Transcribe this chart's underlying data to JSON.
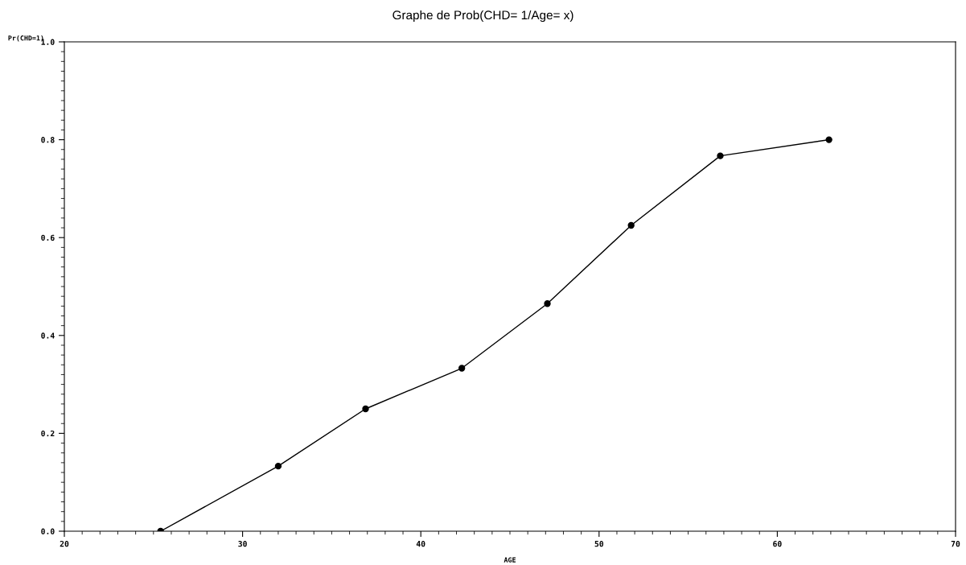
{
  "chart_data": {
    "type": "line",
    "title": "Graphe de Prob(CHD= 1/Age= x)",
    "xlabel": "AGE",
    "ylabel": "Pr(CHD=1)",
    "x": [
      25.4,
      32,
      36.9,
      42.3,
      47.1,
      51.8,
      56.8,
      62.9
    ],
    "series": [
      {
        "color": "#000000",
        "values": [
          0.0,
          0.133,
          0.25,
          0.333,
          0.465,
          0.625,
          0.767,
          0.8
        ]
      }
    ],
    "marker": "circle",
    "line_style": "solid",
    "xlim": [
      20,
      70
    ],
    "xticks": [
      20,
      30,
      40,
      50,
      60,
      70
    ],
    "ylim": [
      0.0,
      1.0
    ],
    "yticks": [
      {
        "value": 0.0,
        "label": "0.0"
      },
      {
        "value": 0.2,
        "label": "0.2"
      },
      {
        "value": 0.4,
        "label": "0.4"
      },
      {
        "value": 0.6,
        "label": "0.6"
      },
      {
        "value": 0.8,
        "label": "0.8"
      },
      {
        "value": 1.0,
        "label": "1.0"
      }
    ],
    "grid": false
  }
}
